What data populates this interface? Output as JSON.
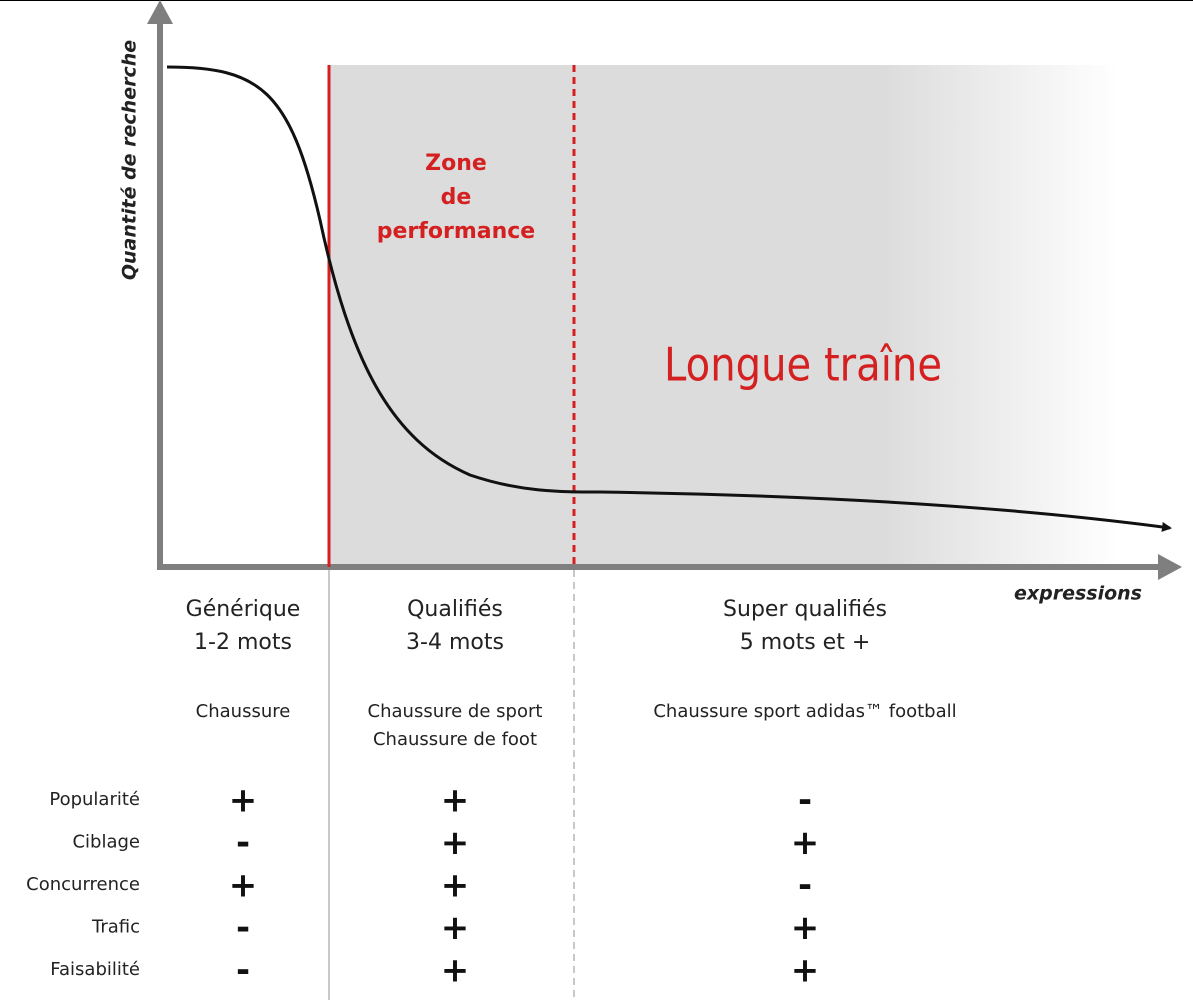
{
  "axes": {
    "y_label": "Quantité de recherche",
    "x_label": "expressions"
  },
  "zones": {
    "performance": [
      "Zone",
      "de",
      "performance"
    ],
    "long_tail": "Longue traîne"
  },
  "columns": [
    {
      "title": [
        "Générique",
        "1-2 mots"
      ],
      "examples": [
        "Chaussure"
      ]
    },
    {
      "title": [
        "Qualifiés",
        "3-4 mots"
      ],
      "examples": [
        "Chaussure de sport",
        "Chaussure de foot"
      ]
    },
    {
      "title": [
        "Super qualifiés",
        "5 mots et +"
      ],
      "examples": [
        "Chaussure sport adidas™ football"
      ]
    }
  ],
  "criteria": [
    {
      "label": "Popularité",
      "values": [
        "+",
        "+",
        "-"
      ]
    },
    {
      "label": "Ciblage",
      "values": [
        "-",
        "+",
        "+"
      ]
    },
    {
      "label": "Concurrence",
      "values": [
        "+",
        "+",
        "-"
      ]
    },
    {
      "label": "Trafic",
      "values": [
        "-",
        "+",
        "+"
      ]
    },
    {
      "label": "Faisabilité",
      "values": [
        "-",
        "+",
        "+"
      ]
    }
  ]
}
